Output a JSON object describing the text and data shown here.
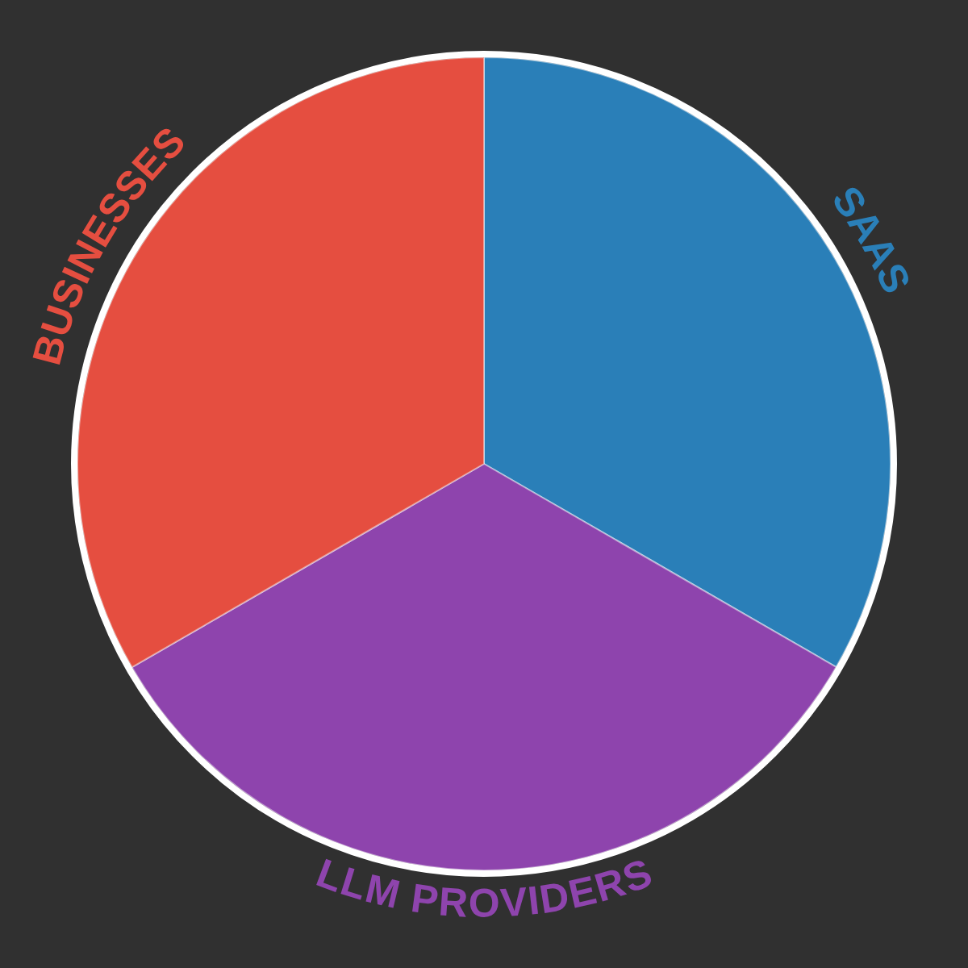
{
  "chart_data": {
    "type": "pie",
    "categories": [
      "SAAS",
      "LLM PROVIDERS",
      "BUSINESSES"
    ],
    "values": [
      33.33,
      33.33,
      33.34
    ],
    "colors": [
      "#2a7fb8",
      "#8e44ad",
      "#e54e40"
    ],
    "legend": false
  }
}
